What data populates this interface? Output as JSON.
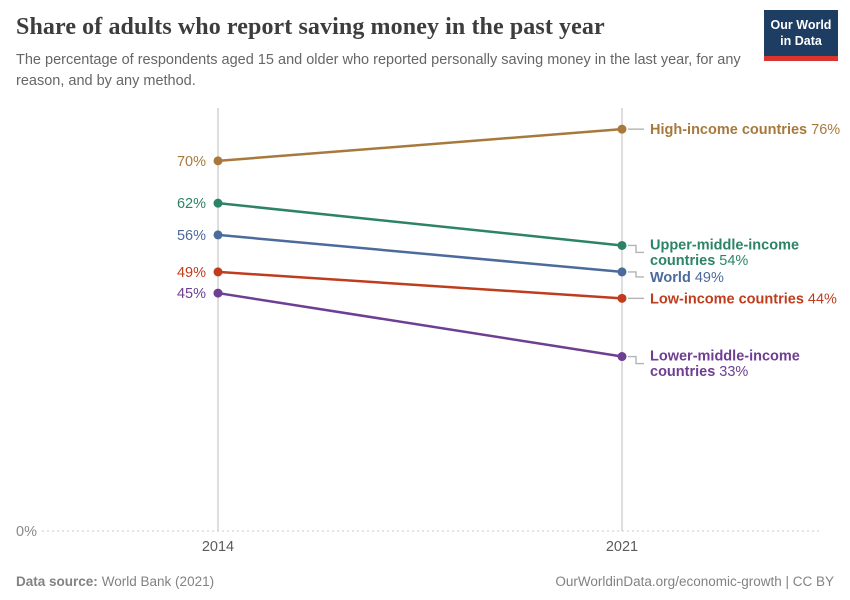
{
  "header": {
    "title": "Share of adults who report saving money in the past year",
    "subtitle": "The percentage of respondents aged 15 and older who reported personally saving money in the last year, for any reason, and by any method.",
    "logo": {
      "line1": "Our World",
      "line2": "in Data",
      "bg_color": "#1d3d63",
      "bar_color": "#d8352f"
    }
  },
  "footer": {
    "datasource_label": "Data source:",
    "datasource_value": "World Bank (2021)",
    "link": "OurWorldinData.org/economic-growth | CC BY"
  },
  "chart_data": {
    "type": "line",
    "subtype": "slope",
    "x": [
      "2014",
      "2021"
    ],
    "series": [
      {
        "name": "High-income countries",
        "values": [
          70,
          76
        ],
        "color": "#a8793d"
      },
      {
        "name": "Upper-middle-income countries",
        "values": [
          62,
          54
        ],
        "color": "#2c8465"
      },
      {
        "name": "World",
        "values": [
          56,
          49
        ],
        "color": "#4c6a9c"
      },
      {
        "name": "Low-income countries",
        "values": [
          49,
          44
        ],
        "color": "#bf3d1d"
      },
      {
        "name": "Lower-middle-income countries",
        "values": [
          45,
          33
        ],
        "color": "#6d3e91"
      }
    ],
    "value_suffix": "%",
    "ylim": [
      0,
      80
    ],
    "y_zero_label": "0%",
    "grid": "dotted zero baseline only",
    "legend_position": "labels right of 2021 points",
    "start_value_labels": "left of 2014 points",
    "colors": {
      "axis_line": "#cccccc",
      "baseline_dotted": "#cbcbcb",
      "tick_text": "#5b5b5b",
      "zero_label_text": "#8a8a8a",
      "connector": "#b3b3b3"
    }
  }
}
